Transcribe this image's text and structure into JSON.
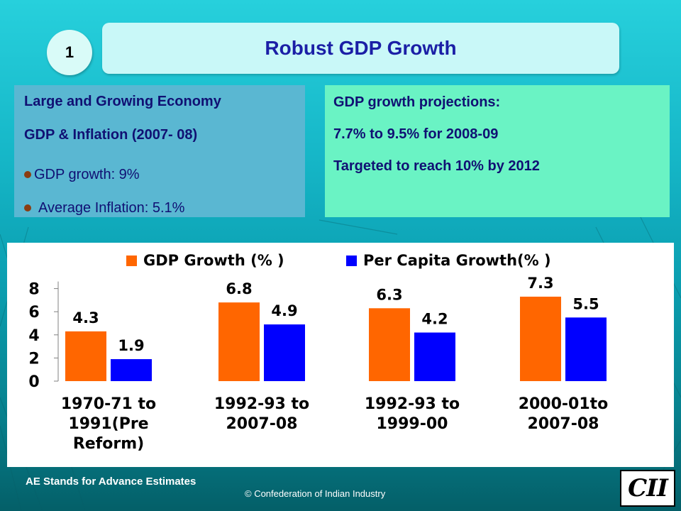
{
  "slide": {
    "number": "1",
    "title": "Robust GDP Growth"
  },
  "left_box": {
    "line1": "Large and Growing Economy",
    "line2": "GDP & Inflation (2007- 08)",
    "bullets": [
      "GDP growth: 9%",
      "Average Inflation: 5.1%"
    ]
  },
  "right_box": {
    "lines": [
      "GDP growth projections:",
      "7.7% to 9.5% for 2008-09",
      "Targeted to reach 10% by 2012"
    ]
  },
  "chart_data": {
    "type": "bar",
    "categories": [
      [
        "1970-71 to",
        "1991(Pre",
        "Reform)"
      ],
      [
        "1992-93 to",
        "2007-08"
      ],
      [
        "1992-93 to",
        "1999-00"
      ],
      [
        "2000-01to",
        "2007-08"
      ]
    ],
    "series": [
      {
        "name": "GDP Growth (% )",
        "color": "#ff6600",
        "values": [
          4.3,
          6.8,
          6.3,
          7.3
        ]
      },
      {
        "name": "Per Capita Growth(% )",
        "color": "#0000ff",
        "values": [
          1.9,
          4.9,
          4.2,
          5.5
        ]
      }
    ],
    "yticks": [
      0,
      2,
      4,
      6,
      8
    ],
    "ylim": [
      0,
      8
    ],
    "grid": false,
    "legend_position": "top"
  },
  "footer": {
    "note": "AE Stands for Advance Estimates",
    "copyright": "© Confederation of Indian Industry",
    "logo": "CII"
  }
}
